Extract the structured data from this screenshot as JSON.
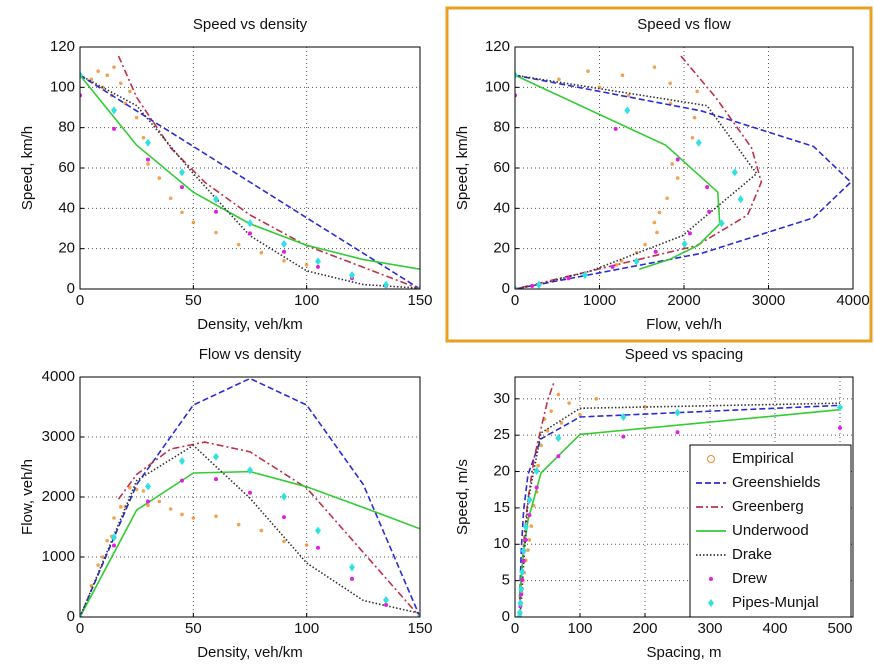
{
  "chart_data": [
    {
      "type": "line",
      "title": "Speed vs density",
      "x_label": "Density, veh/km",
      "y_label": "Speed, km/h",
      "xlim": [
        0,
        150
      ],
      "ylim": [
        0,
        120
      ],
      "xticks": [
        0,
        50,
        100,
        150
      ],
      "yticks": [
        0,
        20,
        40,
        60,
        80,
        100,
        120
      ],
      "grid": true,
      "series": [
        {
          "color": "#f08a24",
          "style": "scatter",
          "x": [
            5,
            8,
            10,
            12,
            14,
            15,
            18,
            20,
            22,
            25,
            28,
            30,
            35,
            40,
            45,
            50,
            60,
            70,
            80,
            90,
            100
          ],
          "values": [
            104,
            108,
            100,
            106,
            96,
            110,
            102,
            92,
            98,
            85,
            75,
            62,
            55,
            45,
            38,
            33,
            28,
            22,
            18,
            14,
            12
          ]
        },
        {
          "color": "#2b2bd9",
          "style": "dashed",
          "x": [
            0,
            25,
            50,
            75,
            100,
            125,
            150
          ],
          "values": [
            106,
            88.3,
            70.7,
            53,
            35.3,
            17.7,
            0
          ]
        },
        {
          "color": "#c0304a",
          "style": "dashdot",
          "x": [
            17,
            25,
            40,
            55,
            75,
            100,
            150
          ],
          "values": [
            115.5,
            95,
            70,
            53,
            36.7,
            21.5,
            0
          ]
        },
        {
          "color": "#33cc33",
          "style": "solid",
          "x": [
            0,
            25,
            50,
            75,
            100,
            125,
            150
          ],
          "values": [
            106,
            71.3,
            48,
            32.3,
            21.7,
            14.6,
            9.8
          ]
        },
        {
          "color": "#333333",
          "style": "dotted",
          "x": [
            0,
            25,
            50,
            75,
            100,
            125,
            150
          ],
          "values": [
            106,
            90.9,
            57.2,
            26.4,
            9,
            2.2,
            0.4
          ]
        },
        {
          "color": "#e020e0",
          "style": "star",
          "x": [
            0,
            15,
            30,
            45,
            60,
            75,
            90,
            105,
            120,
            135,
            150
          ],
          "values": [
            96,
            79.4,
            64.2,
            50.5,
            38.3,
            27.6,
            18.5,
            11,
            5.3,
            1.5,
            0
          ]
        },
        {
          "color": "#33e0e0",
          "style": "diamond",
          "x": [
            0,
            15,
            30,
            45,
            60,
            75,
            90,
            105,
            120,
            135,
            150
          ],
          "values": [
            106,
            88.6,
            72.5,
            57.8,
            44.5,
            32.6,
            22.3,
            13.7,
            6.9,
            2.1,
            0
          ]
        }
      ]
    },
    {
      "type": "line",
      "title": "Speed vs flow",
      "x_label": "Flow, veh/h",
      "y_label": "Speed, km/h",
      "xlim": [
        0,
        4000
      ],
      "ylim": [
        0,
        120
      ],
      "xticks": [
        0,
        1000,
        2000,
        3000,
        4000
      ],
      "yticks": [
        0,
        20,
        40,
        60,
        80,
        100,
        120
      ],
      "grid": true,
      "series": [
        {
          "color": "#f08a24",
          "style": "scatter",
          "x": [
            520,
            864,
            1000,
            1272,
            1344,
            1650,
            1836,
            1840,
            2156,
            2125,
            2100,
            1860,
            1925,
            1800,
            1710,
            1650,
            1680,
            1540,
            1440,
            1260,
            1200
          ],
          "values": [
            104,
            108,
            100,
            106,
            96,
            110,
            102,
            92,
            98,
            85,
            75,
            62,
            55,
            45,
            38,
            33,
            28,
            22,
            18,
            14,
            12
          ]
        },
        {
          "color": "#2b2bd9",
          "style": "dashed",
          "x": [
            0,
            2208,
            3533,
            3975,
            3533,
            2208,
            0
          ],
          "values": [
            106,
            88.3,
            70.7,
            53,
            35.3,
            17.7,
            0
          ]
        },
        {
          "color": "#c0304a",
          "style": "dashdot",
          "x": [
            1964,
            2375,
            2800,
            2915,
            2753,
            2150,
            0
          ],
          "values": [
            115.5,
            95,
            70,
            53,
            36.7,
            21.5,
            0
          ]
        },
        {
          "color": "#33cc33",
          "style": "solid",
          "x": [
            0,
            1783,
            2400,
            2423,
            2170,
            1825,
            1470
          ],
          "values": [
            106,
            71.3,
            48,
            32.3,
            21.7,
            14.6,
            9.8
          ]
        },
        {
          "color": "#333333",
          "style": "dotted",
          "x": [
            0,
            2273,
            2860,
            1980,
            900,
            275,
            60
          ],
          "values": [
            106,
            90.9,
            57.2,
            26.4,
            9,
            2.2,
            0.4
          ]
        },
        {
          "color": "#e020e0",
          "style": "star",
          "x": [
            0,
            1191,
            1926,
            2273,
            2298,
            2070,
            1665,
            1155,
            636,
            203,
            0
          ],
          "values": [
            96,
            79.4,
            64.2,
            50.5,
            38.3,
            27.6,
            18.5,
            11,
            5.3,
            1.5,
            0
          ]
        },
        {
          "color": "#33e0e0",
          "style": "diamond",
          "x": [
            0,
            1329,
            2175,
            2601,
            2670,
            2445,
            2007,
            1439,
            828,
            284,
            0
          ],
          "values": [
            106,
            88.6,
            72.5,
            57.8,
            44.5,
            32.6,
            22.3,
            13.7,
            6.9,
            2.1,
            0
          ]
        }
      ]
    },
    {
      "type": "line",
      "title": "Flow vs density",
      "x_label": "Density, veh/km",
      "y_label": "Flow, veh/h",
      "xlim": [
        0,
        150
      ],
      "ylim": [
        0,
        4000
      ],
      "xticks": [
        0,
        50,
        100,
        150
      ],
      "yticks": [
        0,
        1000,
        2000,
        3000,
        4000
      ],
      "grid": true,
      "series": [
        {
          "color": "#f08a24",
          "style": "scatter",
          "x": [
            5,
            8,
            10,
            12,
            14,
            15,
            18,
            20,
            22,
            25,
            28,
            30,
            35,
            40,
            45,
            50,
            60,
            70,
            80,
            90,
            100
          ],
          "values": [
            520,
            864,
            1000,
            1272,
            1344,
            1650,
            1836,
            1840,
            2156,
            2125,
            2100,
            1860,
            1925,
            1800,
            1710,
            1650,
            1680,
            1540,
            1440,
            1260,
            1200
          ]
        },
        {
          "color": "#2b2bd9",
          "style": "dashed",
          "x": [
            0,
            25,
            50,
            75,
            100,
            125,
            150
          ],
          "values": [
            0,
            2208,
            3533,
            3975,
            3533,
            2208,
            0
          ]
        },
        {
          "color": "#c0304a",
          "style": "dashdot",
          "x": [
            17,
            25,
            40,
            55,
            75,
            100,
            150
          ],
          "values": [
            1964,
            2375,
            2800,
            2915,
            2753,
            2150,
            0
          ]
        },
        {
          "color": "#33cc33",
          "style": "solid",
          "x": [
            0,
            25,
            50,
            75,
            100,
            125,
            150
          ],
          "values": [
            0,
            1783,
            2400,
            2423,
            2170,
            1825,
            1470
          ]
        },
        {
          "color": "#333333",
          "style": "dotted",
          "x": [
            0,
            25,
            50,
            75,
            100,
            125,
            150
          ],
          "values": [
            0,
            2273,
            2860,
            1980,
            900,
            275,
            60
          ]
        },
        {
          "color": "#e020e0",
          "style": "star",
          "x": [
            0,
            15,
            30,
            45,
            60,
            75,
            90,
            105,
            120,
            135,
            150
          ],
          "values": [
            0,
            1191,
            1926,
            2273,
            2298,
            2070,
            1665,
            1155,
            636,
            203,
            0
          ]
        },
        {
          "color": "#33e0e0",
          "style": "diamond",
          "x": [
            0,
            15,
            30,
            45,
            60,
            75,
            90,
            105,
            120,
            135,
            150
          ],
          "values": [
            0,
            1329,
            2175,
            2601,
            2670,
            2445,
            2007,
            1439,
            828,
            284,
            0
          ]
        }
      ]
    },
    {
      "type": "line",
      "title": "Speed vs spacing",
      "x_label": "Spacing, m",
      "y_label": "Speed, m/s",
      "xlim": [
        0,
        520
      ],
      "ylim": [
        0,
        33
      ],
      "xticks": [
        0,
        100,
        200,
        300,
        400,
        500
      ],
      "yticks": [
        0,
        5,
        10,
        15,
        20,
        25,
        30
      ],
      "grid": true,
      "legend": "lower right",
      "series": [
        {
          "name": "Empirical",
          "color": "#f08a24",
          "style": "scatter",
          "x": [
            200,
            125,
            100,
            83.3,
            71.4,
            66.7,
            55.6,
            50,
            45.5,
            40,
            35.7,
            33.3,
            28.6,
            25,
            22.2,
            20,
            16.7,
            14.3,
            12.5,
            11.1,
            10
          ],
          "values": [
            28.9,
            30,
            27.8,
            29.4,
            26.7,
            30.6,
            28.3,
            25.6,
            27.2,
            23.6,
            20.8,
            17.2,
            15.3,
            12.5,
            10.6,
            9.2,
            7.8,
            6.1,
            5,
            3.9,
            3.3
          ]
        },
        {
          "name": "Greenshields",
          "color": "#2b2bd9",
          "style": "dashed",
          "x": [
            6.67,
            8,
            10,
            13.3,
            20,
            40,
            100,
            500
          ],
          "values": [
            0,
            4.9,
            9.8,
            14.7,
            19.6,
            24.5,
            27.5,
            29.1
          ]
        },
        {
          "name": "Greenberg",
          "color": "#c0304a",
          "style": "dashdot",
          "x": [
            6.67,
            10,
            15,
            20,
            30,
            50,
            60
          ],
          "values": [
            0,
            5.97,
            11.9,
            16.2,
            22.1,
            29.7,
            32.3
          ]
        },
        {
          "name": "Underwood",
          "color": "#33cc33",
          "style": "solid",
          "x": [
            6.67,
            8,
            10,
            13.3,
            20,
            40,
            100,
            500
          ],
          "values": [
            2.7,
            4.1,
            6,
            9,
            13.3,
            19.8,
            25.1,
            28.5
          ]
        },
        {
          "name": "Drake",
          "color": "#333333",
          "style": "dotted",
          "x": [
            6.67,
            8,
            10,
            13.3,
            20,
            40,
            100,
            500
          ],
          "values": [
            0.1,
            0.6,
            2.5,
            7.3,
            15.9,
            25.3,
            28.7,
            29.4
          ]
        },
        {
          "name": "Drew",
          "color": "#e020e0",
          "style": "star",
          "x": [
            6.67,
            7.41,
            8.33,
            9.52,
            11.1,
            13.3,
            16.7,
            22.2,
            33.3,
            66.7,
            166.7,
            250,
            500
          ],
          "values": [
            0,
            0.4,
            1.5,
            3.1,
            5.1,
            7.7,
            10.6,
            14,
            17.8,
            22.1,
            24.8,
            25.4,
            26
          ]
        },
        {
          "name": "Pipes-Munjal",
          "color": "#33e0e0",
          "style": "diamond",
          "x": [
            6.67,
            7.41,
            8.33,
            9.52,
            11.1,
            13.3,
            16.7,
            22.2,
            33.3,
            66.7,
            166.7,
            250,
            500
          ],
          "values": [
            0,
            0.6,
            1.9,
            3.8,
            6.2,
            9.1,
            12.4,
            16.1,
            20.1,
            24.6,
            27.5,
            28.1,
            28.8
          ]
        }
      ]
    }
  ]
}
